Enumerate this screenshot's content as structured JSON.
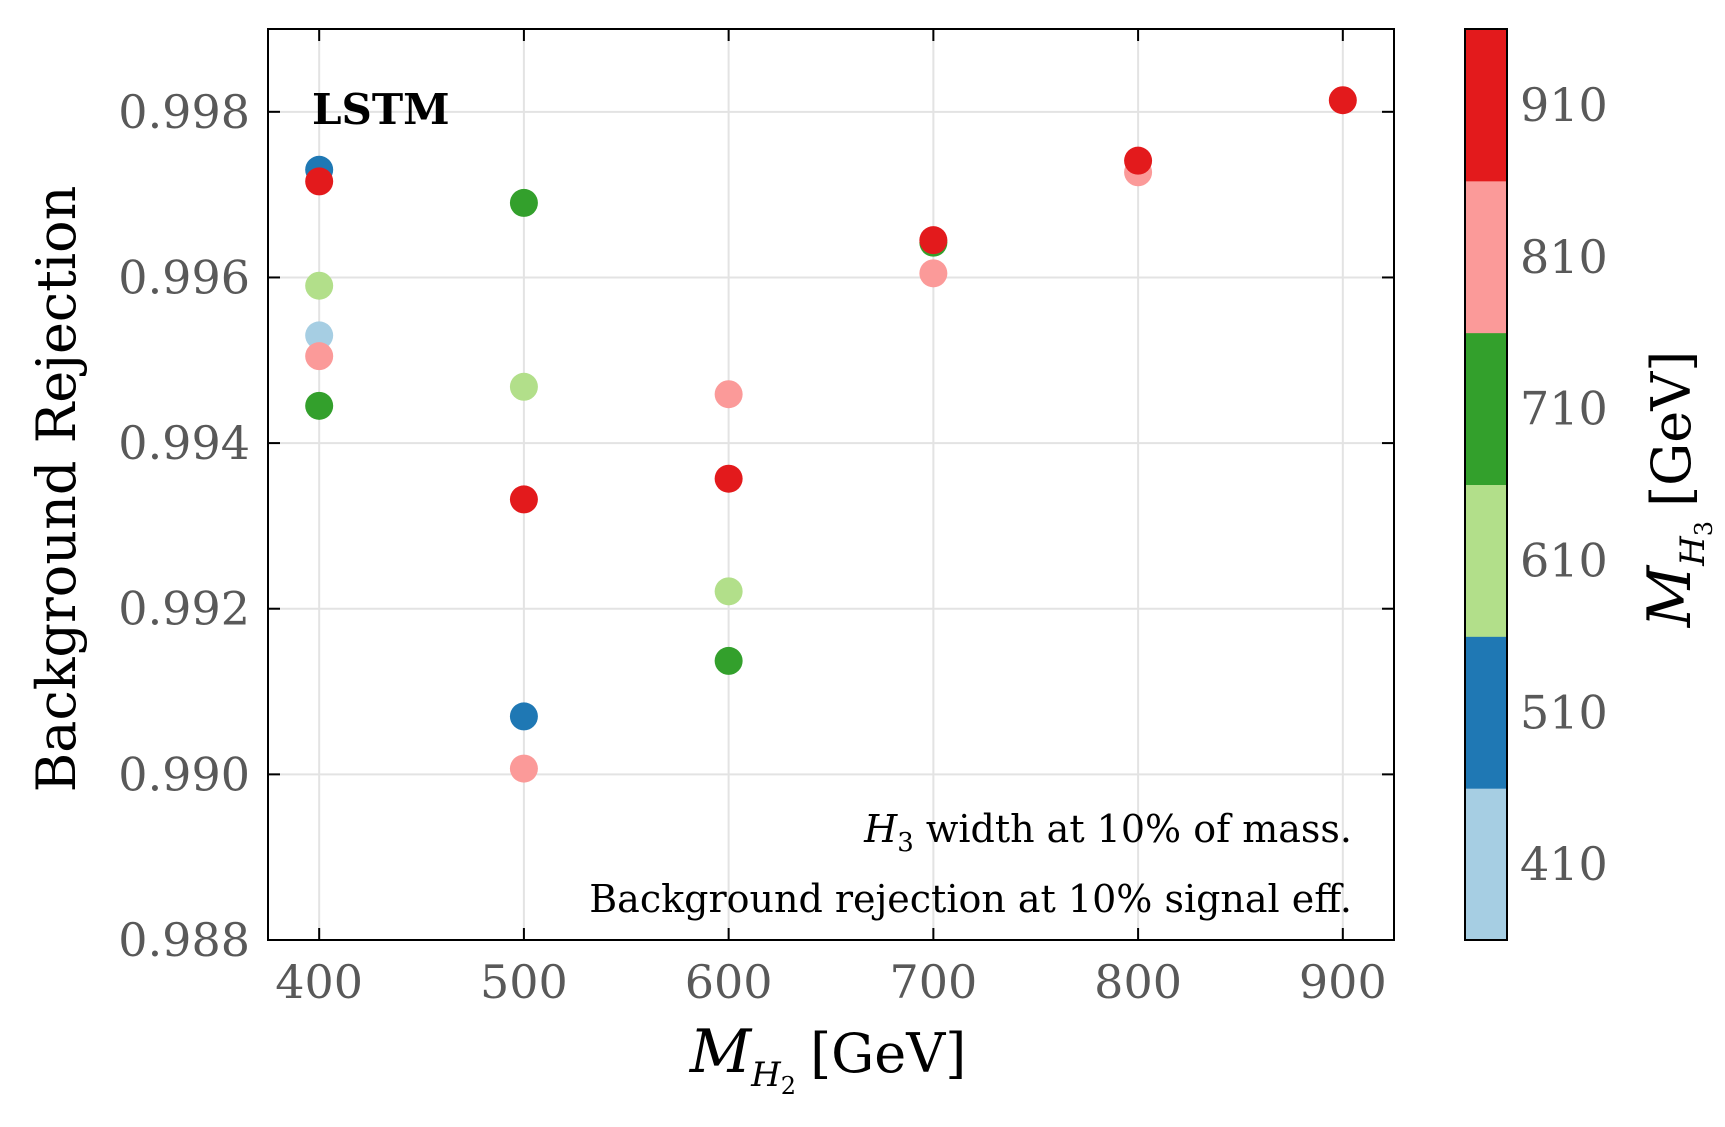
{
  "chart_data": {
    "type": "scatter",
    "title": "",
    "panel_label": "LSTM",
    "xlabel": {
      "main": "M",
      "sub": "H",
      "subsub": "2",
      "unit": "[GeV]"
    },
    "ylabel": "Background Rejection",
    "colorbar_label": {
      "main": "M",
      "sub": "H",
      "subsub": "3",
      "unit": "[GeV]"
    },
    "xlim": [
      375,
      925
    ],
    "ylim": [
      0.988,
      0.999
    ],
    "xticks": [
      400,
      500,
      600,
      700,
      800,
      900
    ],
    "xtick_labels": [
      "400",
      "500",
      "600",
      "700",
      "800",
      "900"
    ],
    "yticks": [
      0.988,
      0.99,
      0.992,
      0.994,
      0.996,
      0.998
    ],
    "ytick_labels": [
      "0.988",
      "0.990",
      "0.992",
      "0.994",
      "0.996",
      "0.998"
    ],
    "grid": true,
    "annotations": {
      "line1_symbol": "H",
      "line1_sub": "3",
      "line1_text": " width at 10% of mass.",
      "line2": "Background rejection at 10% signal eff."
    },
    "colorbar": {
      "categories": [
        {
          "label": "410",
          "value": 410,
          "color": "#a6cee3"
        },
        {
          "label": "510",
          "value": 510,
          "color": "#1f78b4"
        },
        {
          "label": "610",
          "value": 610,
          "color": "#b2df8a"
        },
        {
          "label": "710",
          "value": 710,
          "color": "#33a02c"
        },
        {
          "label": "810",
          "value": 810,
          "color": "#fb9a99"
        },
        {
          "label": "910",
          "value": 910,
          "color": "#e31a1c"
        }
      ]
    },
    "points": [
      {
        "x": 400,
        "y": 0.9953,
        "h3": 410
      },
      {
        "x": 400,
        "y": 0.9973,
        "h3": 510
      },
      {
        "x": 400,
        "y": 0.9959,
        "h3": 610
      },
      {
        "x": 400,
        "y": 0.99445,
        "h3": 710
      },
      {
        "x": 400,
        "y": 0.99505,
        "h3": 810
      },
      {
        "x": 400,
        "y": 0.99716,
        "h3": 910
      },
      {
        "x": 500,
        "y": 0.9907,
        "h3": 510
      },
      {
        "x": 500,
        "y": 0.99468,
        "h3": 610
      },
      {
        "x": 500,
        "y": 0.9969,
        "h3": 710
      },
      {
        "x": 500,
        "y": 0.99007,
        "h3": 810
      },
      {
        "x": 500,
        "y": 0.99332,
        "h3": 910
      },
      {
        "x": 600,
        "y": 0.99221,
        "h3": 610
      },
      {
        "x": 600,
        "y": 0.99137,
        "h3": 710
      },
      {
        "x": 600,
        "y": 0.99459,
        "h3": 810
      },
      {
        "x": 600,
        "y": 0.99357,
        "h3": 910
      },
      {
        "x": 700,
        "y": 0.99642,
        "h3": 710
      },
      {
        "x": 700,
        "y": 0.99605,
        "h3": 810
      },
      {
        "x": 700,
        "y": 0.99645,
        "h3": 910
      },
      {
        "x": 800,
        "y": 0.99727,
        "h3": 810
      },
      {
        "x": 800,
        "y": 0.99741,
        "h3": 910
      },
      {
        "x": 900,
        "y": 0.99814,
        "h3": 910
      }
    ]
  }
}
